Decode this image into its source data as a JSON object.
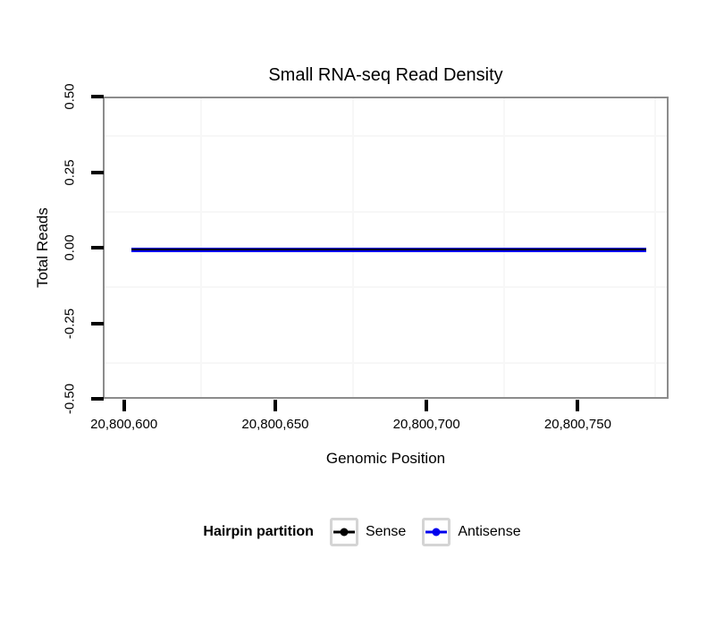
{
  "chart_data": {
    "type": "line",
    "title": "Small RNA-seq Read Density",
    "xlabel": "Genomic Position",
    "ylabel": "Total Reads",
    "xlim": [
      20800593,
      20800780
    ],
    "ylim": [
      -0.5,
      0.5
    ],
    "x_ticks": {
      "values": [
        20800600,
        20800650,
        20800700,
        20800750
      ],
      "labels": [
        "20,800,600",
        "20,800,650",
        "20,800,700",
        "20,800,750"
      ]
    },
    "y_ticks": {
      "values": [
        0.5,
        0.25,
        0,
        -0.25,
        -0.5
      ],
      "labels": [
        "0.50",
        "0.25",
        "0.00",
        "-0.25",
        "-0.50"
      ]
    },
    "x_minor_gridlines": [
      20800625,
      20800675,
      20800725,
      20800775
    ],
    "y_minor_gridlines": [
      0.375,
      0.125,
      -0.125,
      -0.375
    ],
    "grid": "minor-only",
    "legend_position": "bottom",
    "series": [
      {
        "name": "Sense",
        "color": "#000000",
        "x": [
          20800602,
          20800772
        ],
        "y": [
          0,
          0
        ]
      },
      {
        "name": "Antisense",
        "color": "#0000EE",
        "x": [
          20800602,
          20800772
        ],
        "y": [
          0,
          0
        ]
      }
    ],
    "legend": {
      "title": "Hairpin partition",
      "entries": [
        {
          "label": "Sense",
          "color": "#000000"
        },
        {
          "label": "Antisense",
          "color": "#0000EE"
        }
      ]
    }
  },
  "colors": {
    "panel_border": "#8c8c8c",
    "gridline": "#f7f7f7",
    "tick": "#000000",
    "text": "#000000",
    "legend_key_border": "#d4d4d4"
  }
}
